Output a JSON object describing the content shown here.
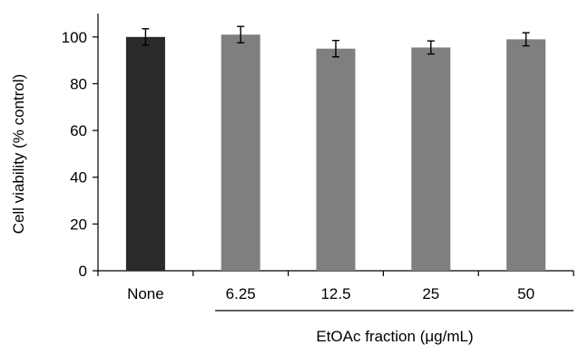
{
  "chart_data": {
    "type": "bar",
    "categories": [
      "None",
      "6.25",
      "12.5",
      "25",
      "50"
    ],
    "values": [
      100,
      101,
      95,
      95.5,
      99
    ],
    "errors": [
      3.5,
      3.5,
      3.5,
      2.8,
      2.8
    ],
    "bar_colors": [
      "#2a2a2a",
      "#7f7f7f",
      "#7f7f7f",
      "#7f7f7f",
      "#7f7f7f"
    ],
    "ylabel": "Cell viability (% control)",
    "group_label": "EtOAc fraction (μg/mL)",
    "ylim": [
      0,
      110
    ],
    "yticks": [
      "0",
      "20",
      "40",
      "60",
      "80",
      "100"
    ],
    "grid": false,
    "legend": "none"
  }
}
